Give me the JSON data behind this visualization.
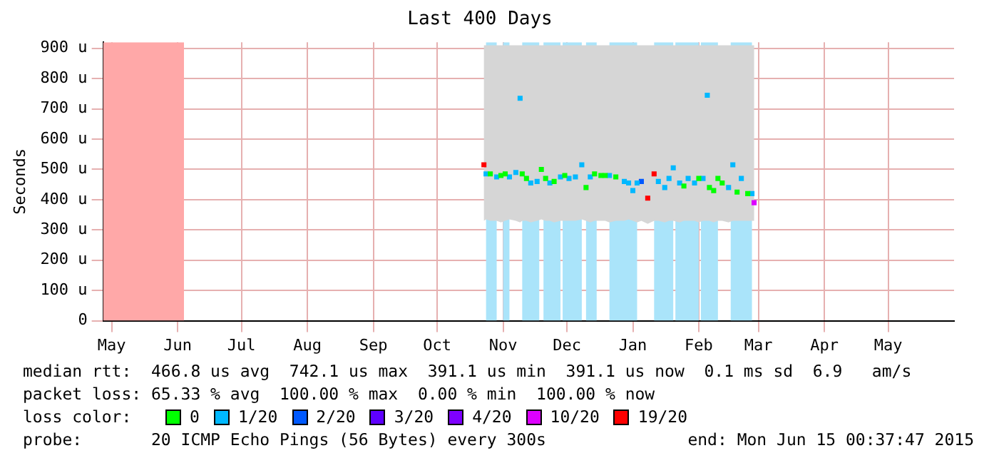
{
  "chart_data": {
    "type": "scatter",
    "title": "Last 400 Days",
    "ylabel": "Seconds",
    "legend_title": "loss color:",
    "legend": "bottom",
    "marker": "square",
    "grid": true,
    "xlim": [
      "2014-05-11",
      "2015-06-15"
    ],
    "xticks": [
      {
        "value": "2014-05-15",
        "label": "May"
      },
      {
        "value": "2014-06-15",
        "label": "Jun"
      },
      {
        "value": "2014-07-15",
        "label": "Jul"
      },
      {
        "value": "2014-08-15",
        "label": "Aug"
      },
      {
        "value": "2014-09-15",
        "label": "Sep"
      },
      {
        "value": "2014-10-15",
        "label": "Oct"
      },
      {
        "value": "2014-11-15",
        "label": "Nov"
      },
      {
        "value": "2014-12-15",
        "label": "Dec"
      },
      {
        "value": "2015-01-15",
        "label": "Jan"
      },
      {
        "value": "2015-02-15",
        "label": "Feb"
      },
      {
        "value": "2015-03-15",
        "label": "Mar"
      },
      {
        "value": "2015-04-15",
        "label": "Apr"
      },
      {
        "value": "2015-05-15",
        "label": "May"
      }
    ],
    "ylim": [
      0,
      920
    ],
    "yticks": [
      0,
      {
        "value": 100,
        "label": "100 u"
      },
      {
        "value": 200,
        "label": "200 u"
      },
      {
        "value": 300,
        "label": "300 u"
      },
      {
        "value": 400,
        "label": "400 u"
      },
      {
        "value": 500,
        "label": "500 u"
      },
      {
        "value": 600,
        "label": "600 u"
      },
      {
        "value": 700,
        "label": "700 u"
      },
      {
        "value": 800,
        "label": "800 u"
      },
      {
        "value": 900,
        "label": "900 u"
      }
    ],
    "series": [
      {
        "name": "0",
        "color": "#00ff00",
        "x": [
          "2014-11-06",
          "2014-11-07",
          "2014-11-09",
          "2014-11-12",
          "2014-11-14",
          "2014-11-16",
          "2014-11-18",
          "2014-11-21",
          "2014-11-23",
          "2014-11-24",
          "2014-11-26",
          "2014-11-28",
          "2014-12-01",
          "2014-12-03",
          "2014-12-05",
          "2014-12-07",
          "2014-12-09",
          "2014-12-12",
          "2014-12-14",
          "2014-12-16",
          "2014-12-19",
          "2014-12-22",
          "2014-12-24",
          "2014-12-26",
          "2014-12-28",
          "2014-12-31",
          "2015-01-02",
          "2015-01-04",
          "2015-01-07",
          "2015-01-11",
          "2015-01-13",
          "2015-01-15",
          "2015-01-17",
          "2015-01-19",
          "2015-01-22",
          "2015-01-25",
          "2015-01-27",
          "2015-01-30",
          "2015-02-01",
          "2015-02-03",
          "2015-02-06",
          "2015-02-08",
          "2015-02-10",
          "2015-02-13",
          "2015-02-15",
          "2015-02-17",
          "2015-02-19",
          "2015-02-20",
          "2015-02-22",
          "2015-02-24",
          "2015-02-26",
          "2015-03-01",
          "2015-03-03",
          "2015-03-05",
          "2015-03-07",
          "2015-03-10",
          "2015-03-12",
          "2015-03-13"
        ],
        "values": [
          null,
          null,
          485,
          null,
          480,
          485,
          null,
          null,
          null,
          485,
          470,
          null,
          null,
          500,
          470,
          null,
          460,
          null,
          480,
          null,
          null,
          null,
          440,
          null,
          485,
          480,
          480,
          null,
          475,
          null,
          null,
          null,
          null,
          null,
          null,
          null,
          null,
          null,
          null,
          null,
          null,
          445,
          null,
          null,
          470,
          null,
          null,
          440,
          430,
          470,
          455,
          null,
          null,
          425,
          null,
          420,
          null,
          null
        ],
        "lower": [
          330,
          335,
          330,
          330,
          325,
          330,
          335,
          330,
          325,
          330,
          330,
          325,
          330,
          335,
          330,
          330,
          325,
          330,
          330,
          330,
          330,
          335,
          330,
          325,
          330,
          330,
          330,
          325,
          330,
          330,
          335,
          330,
          325,
          330,
          320,
          330,
          330,
          325,
          330,
          330,
          325,
          330,
          330,
          330,
          325,
          330,
          330,
          330,
          325,
          330,
          330,
          325,
          330,
          330,
          330,
          330,
          330,
          330
        ],
        "upper": [
          910,
          910,
          910,
          910,
          910,
          910,
          910,
          910,
          910,
          910,
          910,
          910,
          910,
          910,
          910,
          910,
          910,
          910,
          910,
          910,
          910,
          910,
          910,
          910,
          910,
          910,
          910,
          910,
          910,
          910,
          910,
          910,
          910,
          910,
          910,
          910,
          910,
          910,
          910,
          910,
          910,
          910,
          910,
          910,
          910,
          910,
          910,
          910,
          910,
          910,
          910,
          910,
          910,
          910,
          910,
          910,
          910,
          910
        ]
      },
      {
        "name": "1/20",
        "color": "#00b8ff",
        "x": [
          "2014-11-07",
          "2014-11-12",
          "2014-11-18",
          "2014-11-21",
          "2014-11-23",
          "2014-11-28",
          "2014-12-01",
          "2014-12-07",
          "2014-12-12",
          "2014-12-16",
          "2014-12-19",
          "2014-12-22",
          "2014-12-26",
          "2015-01-04",
          "2015-01-11",
          "2015-01-13",
          "2015-01-15",
          "2015-01-17",
          "2015-01-27",
          "2015-01-30",
          "2015-02-01",
          "2015-02-03",
          "2015-02-06",
          "2015-02-10",
          "2015-02-13",
          "2015-02-17",
          "2015-02-19",
          "2015-03-01",
          "2015-03-03",
          "2015-03-07",
          "2015-03-12"
        ],
        "values": [
          485,
          475,
          475,
          490,
          735,
          455,
          460,
          455,
          475,
          470,
          475,
          515,
          475,
          480,
          460,
          455,
          430,
          455,
          460,
          440,
          470,
          505,
          455,
          470,
          455,
          470,
          745,
          440,
          515,
          470,
          420
        ]
      },
      {
        "name": "2/20",
        "color": "#0059ff",
        "x": [
          "2015-01-19"
        ],
        "values": [
          460
        ]
      },
      {
        "name": "3/20",
        "color": "#5e00ff"
      },
      {
        "name": "4/20",
        "color": "#7e00ff"
      },
      {
        "name": "10/20",
        "color": "#dd00ff",
        "x": [
          "2015-03-13"
        ],
        "values": [
          390
        ]
      },
      {
        "name": "19/20",
        "color": "#ff0000",
        "x": [
          "2014-11-06",
          "2015-01-22",
          "2015-01-25"
        ],
        "values": [
          515,
          405,
          485
        ]
      }
    ],
    "bands": [
      {
        "axis": "x",
        "from": "2014-05-11",
        "to": "2014-06-18",
        "color": "#ffa8a8"
      },
      {
        "axis": "x",
        "from": "2014-11-07",
        "to": "2014-11-12",
        "color": "#aae4fa"
      },
      {
        "axis": "x",
        "from": "2014-11-15",
        "to": "2014-11-18",
        "color": "#aae4fa"
      },
      {
        "axis": "x",
        "from": "2014-11-24",
        "to": "2014-12-02",
        "color": "#aae4fa"
      },
      {
        "axis": "x",
        "from": "2014-12-04",
        "to": "2014-12-12",
        "color": "#aae4fa"
      },
      {
        "axis": "x",
        "from": "2014-12-13",
        "to": "2014-12-22",
        "color": "#aae4fa"
      },
      {
        "axis": "x",
        "from": "2014-12-24",
        "to": "2014-12-29",
        "color": "#aae4fa"
      },
      {
        "axis": "x",
        "from": "2015-01-04",
        "to": "2015-01-17",
        "color": "#aae4fa"
      },
      {
        "axis": "x",
        "from": "2015-01-25",
        "to": "2015-02-03",
        "color": "#aae4fa"
      },
      {
        "axis": "x",
        "from": "2015-02-04",
        "to": "2015-02-15",
        "color": "#aae4fa"
      },
      {
        "axis": "x",
        "from": "2015-02-16",
        "to": "2015-02-24",
        "color": "#aae4fa"
      },
      {
        "axis": "x",
        "from": "2015-03-02",
        "to": "2015-03-12",
        "color": "#aae4fa"
      }
    ],
    "annotations": [
      "median rtt:  466.8 us avg  742.1 us max  391.1 us min  391.1 us now  0.1 ms sd  6.9   am/s",
      "packet loss: 65.33 % avg  100.00 % max  0.00 % min  100.00 % now",
      "probe:       20 ICMP Echo Pings (56 Bytes) every 300s",
      "end: Mon Jun 15 00:37:47 2015"
    ]
  }
}
